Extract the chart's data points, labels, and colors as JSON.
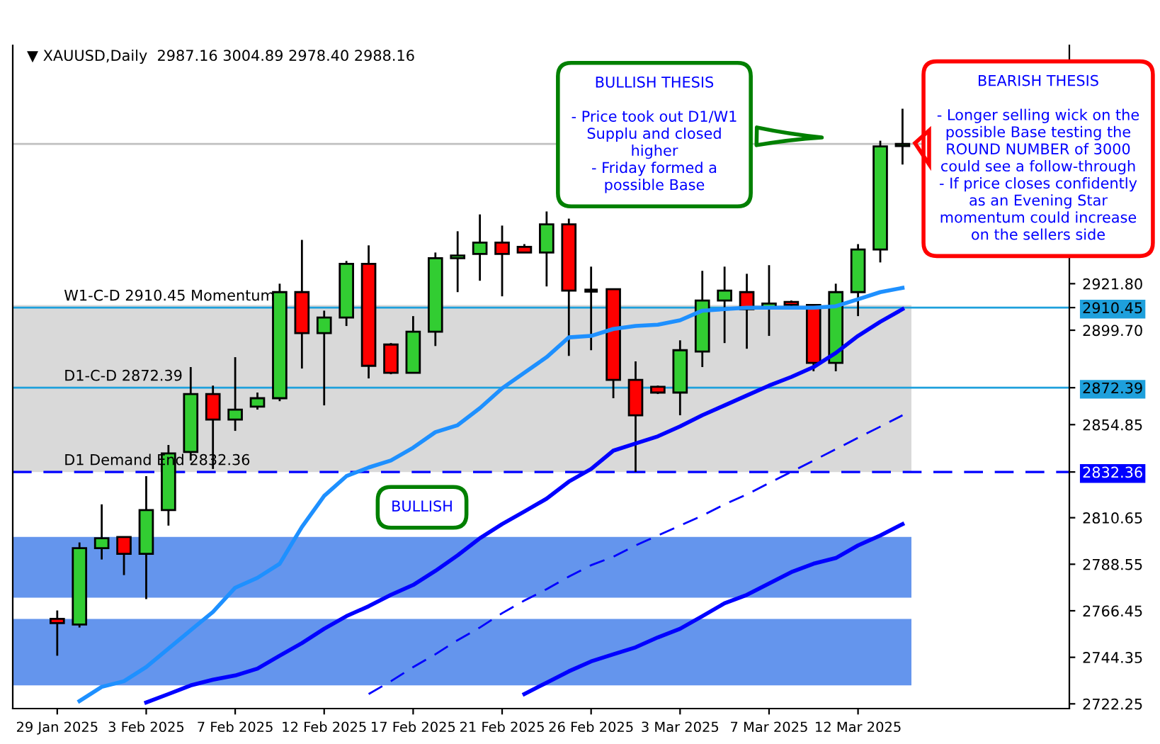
{
  "chart_data": {
    "type": "candlestick",
    "categories": [
      "29 Jan 2025",
      null,
      null,
      null,
      "3 Feb 2025",
      null,
      null,
      null,
      "7 Feb 2025",
      null,
      null,
      null,
      "12 Feb 2025",
      null,
      null,
      null,
      "17 Feb 2025",
      null,
      null,
      null,
      "21 Feb 2025",
      null,
      null,
      null,
      "26 Feb 2025",
      null,
      null,
      null,
      "3 Mar 2025",
      null,
      null,
      null,
      "7 Mar 2025",
      null,
      null,
      null,
      "12 Mar 2025",
      null,
      null
    ],
    "ohlc": [
      [
        2762.6,
        2766.6,
        2745.1,
        2760.6
      ],
      [
        2759.9,
        2798.9,
        2758.5,
        2796.2
      ],
      [
        2796.2,
        2817.0,
        2790.8,
        2800.9
      ],
      [
        2801.5,
        2801.5,
        2783.4,
        2793.5
      ],
      [
        2793.5,
        2830.4,
        2772.0,
        2814.3
      ],
      [
        2814.3,
        2845.2,
        2806.9,
        2841.2
      ],
      [
        2841.9,
        2882.2,
        2837.8,
        2869.4
      ],
      [
        2869.4,
        2873.4,
        2833.8,
        2857.3
      ],
      [
        2857.3,
        2886.9,
        2851.9,
        2862.0
      ],
      [
        2863.4,
        2870.1,
        2862.0,
        2867.4
      ],
      [
        2867.4,
        2921.8,
        2866.0,
        2917.8
      ],
      [
        2917.8,
        2942.6,
        2881.5,
        2898.3
      ],
      [
        2898.3,
        2909.0,
        2864.0,
        2905.7
      ],
      [
        2905.7,
        2932.6,
        2901.7,
        2931.2
      ],
      [
        2931.2,
        2940.0,
        2876.8,
        2882.8
      ],
      [
        2892.9,
        2893.6,
        2878.8,
        2879.5
      ],
      [
        2879.5,
        2906.4,
        2879.5,
        2899.0
      ],
      [
        2899.0,
        2936.6,
        2892.2,
        2933.9
      ],
      [
        2933.9,
        2946.7,
        2917.8,
        2935.2
      ],
      [
        2935.9,
        2954.7,
        2923.2,
        2941.3
      ],
      [
        2941.3,
        2949.4,
        2915.8,
        2935.9
      ],
      [
        2939.3,
        2940.6,
        2936.6,
        2936.6
      ],
      [
        2936.6,
        2956.1,
        2920.5,
        2950.0
      ],
      [
        2950.0,
        2952.7,
        2887.5,
        2918.5
      ],
      [
        2918.5,
        2929.9,
        2890.2,
        2918.5
      ],
      [
        2919.2,
        2919.2,
        2867.4,
        2876.1
      ],
      [
        2876.1,
        2884.9,
        2832.4,
        2859.3
      ],
      [
        2872.8,
        2873.4,
        2869.4,
        2870.1
      ],
      [
        2870.1,
        2894.9,
        2859.3,
        2890.2
      ],
      [
        2889.6,
        2927.9,
        2882.2,
        2913.8
      ],
      [
        2913.8,
        2929.9,
        2893.6,
        2918.5
      ],
      [
        2917.8,
        2926.5,
        2890.9,
        2909.7
      ],
      [
        2910.4,
        2930.6,
        2897.0,
        2912.4
      ],
      [
        2913.1,
        2913.8,
        2909.7,
        2911.7
      ],
      [
        2911.7,
        2911.7,
        2880.2,
        2884.2
      ],
      [
        2884.2,
        2921.8,
        2880.2,
        2917.8
      ],
      [
        2917.8,
        2940.6,
        2906.4,
        2938.0
      ],
      [
        2938.0,
        2989.7,
        2931.9,
        2987.0
      ],
      [
        2987.16,
        3004.89,
        2978.4,
        2988.16
      ]
    ],
    "colors": [
      "#ff0000",
      "#32cd32",
      "#32cd32",
      "#ff0000",
      "#32cd32",
      "#32cd32",
      "#32cd32",
      "#ff0000",
      "#32cd32",
      "#32cd32",
      "#32cd32",
      "#ff0000",
      "#32cd32",
      "#32cd32",
      "#ff0000",
      "#ff0000",
      "#32cd32",
      "#32cd32",
      "#32cd32",
      "#32cd32",
      "#ff0000",
      "#ff0000",
      "#32cd32",
      "#ff0000",
      "#000000",
      "#ff0000",
      "#ff0000",
      "#ff0000",
      "#32cd32",
      "#32cd32",
      "#32cd32",
      "#ff0000",
      "#32cd32",
      "#ff0000",
      "#ff0000",
      "#32cd32",
      "#32cd32",
      "#32cd32",
      "#32cd32"
    ],
    "series": [
      {
        "type": "line",
        "color": "#1e90ff",
        "line_style": "solid",
        "values": [
          null,
          2723.6,
          2730.3,
          2733.0,
          2739.7,
          2748.5,
          2757.2,
          2765.9,
          2777.4,
          2782.1,
          2788.8,
          2806.3,
          2821.0,
          2830.4,
          2834.5,
          2837.8,
          2843.9,
          2851.3,
          2854.6,
          2862.7,
          2872.1,
          2879.5,
          2886.9,
          2896.3,
          2897.0,
          2900.3,
          2901.7,
          2902.3,
          2904.4,
          2909.0,
          2909.7,
          2910.4,
          2910.4,
          2910.4,
          2910.4,
          2911.1,
          2914.4,
          2917.8,
          2919.8
        ]
      },
      {
        "type": "line",
        "color": "#0000ff",
        "line_style": "solid",
        "values": [
          null,
          null,
          null,
          null,
          2722.9,
          2726.9,
          2731.0,
          2733.7,
          2735.7,
          2739.0,
          2745.1,
          2751.1,
          2757.9,
          2763.9,
          2768.6,
          2774.0,
          2778.7,
          2785.4,
          2792.8,
          2800.9,
          2807.6,
          2813.6,
          2819.7,
          2827.8,
          2833.8,
          2842.5,
          2845.9,
          2849.3,
          2854.0,
          2859.3,
          2864.0,
          2868.7,
          2873.4,
          2877.5,
          2882.2,
          2888.9,
          2897.0,
          2903.7,
          2909.7
        ]
      },
      {
        "type": "line",
        "color": "#0000ff",
        "line_style": "dashed",
        "values": [
          null,
          null,
          null,
          null,
          null,
          null,
          null,
          null,
          null,
          null,
          null,
          null,
          null,
          null,
          2726.9,
          2733.0,
          2739.7,
          2745.8,
          2752.5,
          2758.5,
          2765.3,
          2771.3,
          2776.7,
          2782.7,
          2788.1,
          2792.1,
          2797.5,
          2802.2,
          2806.9,
          2811.6,
          2817.0,
          2821.7,
          2827.1,
          2832.4,
          2837.8,
          2843.2,
          2848.6,
          2853.9,
          2859.3
        ]
      },
      {
        "type": "line",
        "color": "#0000ff",
        "line_style": "solid",
        "values": [
          null,
          null,
          null,
          null,
          null,
          null,
          null,
          null,
          null,
          null,
          null,
          null,
          null,
          null,
          null,
          null,
          null,
          null,
          null,
          null,
          null,
          2726.9,
          2732.3,
          2737.7,
          2742.4,
          2745.8,
          2749.1,
          2753.8,
          2757.9,
          2763.9,
          2770.0,
          2774.0,
          2779.4,
          2784.8,
          2788.8,
          2791.5,
          2797.5,
          2802.2,
          2807.6
        ]
      }
    ],
    "ylim": [
      2720,
      3035
    ],
    "yticks": [
      2722.25,
      2744.35,
      2766.45,
      2788.55,
      2810.65,
      2832.36,
      2854.85,
      2872.39,
      {
        "value": 2899.7,
        "label": "2899.70"
      },
      2910.45,
      {
        "value": 2921.8,
        "label": "2921.80"
      }
    ],
    "ref_lines": [
      {
        "axis": "y",
        "value": 2988.16,
        "color": "#c0c0c0"
      },
      {
        "axis": "y",
        "value": 2910.45,
        "label": "W1-C-D 2910.45 Momentum",
        "color": "#1ea0dc"
      },
      {
        "axis": "y",
        "value": 2872.39,
        "label": "D1-C-D 2872.39",
        "color": "#1ea0dc"
      },
      {
        "axis": "y",
        "value": 2832.36,
        "label": "D1 Demand End 2832.36",
        "color": "#0000ff",
        "line_style": "dashed"
      }
    ],
    "bands": [
      {
        "axis": "y",
        "from": 2772.65,
        "to": 2801.5,
        "color": "#6495ed"
      },
      {
        "axis": "y",
        "from": 2731.0,
        "to": 2762.6,
        "color": "#6495ed"
      },
      {
        "axis": "y",
        "from": 2832.36,
        "to": 2880.2,
        "color": "#d9d9d9"
      },
      {
        "axis": "y",
        "from": 2880.2,
        "to": 2911.7,
        "color": "#d9d9d9"
      }
    ],
    "annotations": [
      "▼ XAUUSD,Daily  2987.16 3004.89 2978.40 2988.16",
      "BULLISH THESIS\n\n- Price took out D1/W1\nSupplu and closed\nhigher\n- Friday formed a\npossible Base",
      "BEARISH THESIS\n\n- Longer selling wick on the\npossible Base testing the\nROUND NUMBER of 3000\ncould see a follow-through\n- If price closes confidently\nas an Evening Star\nmomentum could increase\non the sellers side",
      "BULLISH"
    ],
    "grid": false
  }
}
